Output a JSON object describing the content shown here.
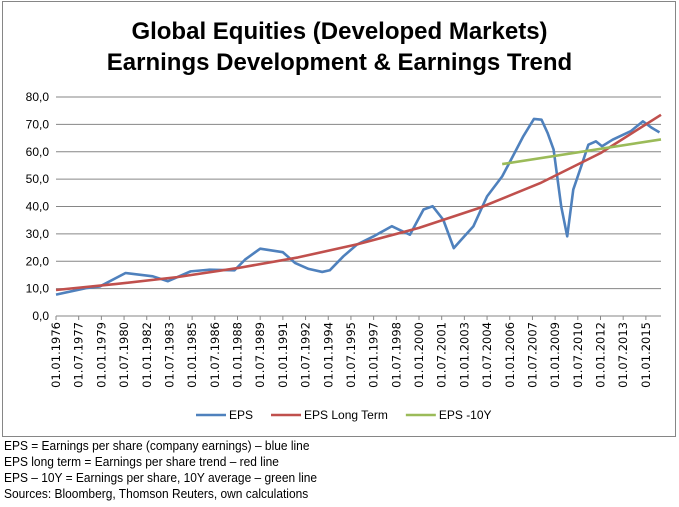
{
  "chart_data": {
    "type": "line",
    "title": "Global Equities (Developed Markets)",
    "subtitle": "Earnings Development & Earnings Trend",
    "xlabel": "",
    "ylabel": "",
    "xlim": [
      1976.0,
      2016.0
    ],
    "ylim": [
      0,
      80
    ],
    "yticks": [
      "0,0",
      "10,0",
      "20,0",
      "30,0",
      "40,0",
      "50,0",
      "60,0",
      "70,0",
      "80,0"
    ],
    "ytick_values": [
      0,
      10,
      20,
      30,
      40,
      50,
      60,
      70,
      80
    ],
    "xticks": [
      "01.01.1976",
      "01.07.1977",
      "01.01.1979",
      "01.07.1980",
      "01.01.1982",
      "01.07.1983",
      "01.01.1985",
      "01.07.1986",
      "01.01.1988",
      "01.07.1989",
      "01.01.1991",
      "01.07.1992",
      "01.01.1994",
      "01.07.1995",
      "01.01.1997",
      "01.07.1998",
      "01.01.2000",
      "01.07.2001",
      "01.01.2003",
      "01.07.2004",
      "01.01.2006",
      "01.07.2007",
      "01.01.2009",
      "01.07.2010",
      "01.01.2012",
      "01.07.2013",
      "01.01.2015"
    ],
    "grid": true,
    "legend_position": "bottom",
    "series": [
      {
        "name": "EPS",
        "color": "#4F81BD",
        "x": [
          1976.0,
          1978.0,
          1978.9,
          1980.6,
          1982.4,
          1983.4,
          1984.9,
          1986.1,
          1987.8,
          1988.5,
          1989.5,
          1991.0,
          1991.8,
          1992.7,
          1993.6,
          1994.1,
          1995.0,
          1995.9,
          1997.0,
          1998.2,
          1998.7,
          1999.4,
          2000.3,
          2000.9,
          2001.6,
          2002.3,
          2002.8,
          2003.6,
          2004.5,
          2005.5,
          2006.2,
          2006.9,
          2007.6,
          2008.1,
          2008.5,
          2008.9,
          2009.4,
          2009.8,
          2010.2,
          2010.8,
          2011.2,
          2011.7,
          2012.1,
          2012.8,
          2014.0,
          2014.8,
          2015.4,
          2015.9
        ],
        "values": [
          7.8,
          10.2,
          10.8,
          15.7,
          14.5,
          12.7,
          16.3,
          16.9,
          16.7,
          20.6,
          24.6,
          23.3,
          19.4,
          17.2,
          16.1,
          16.7,
          21.8,
          26.1,
          29.1,
          32.8,
          31.5,
          29.7,
          38.9,
          40.1,
          35.2,
          24.8,
          27.9,
          32.8,
          43.7,
          51.0,
          58.3,
          65.7,
          72.0,
          71.7,
          66.9,
          60.8,
          40.1,
          29.1,
          46.2,
          55.9,
          62.6,
          63.8,
          62.0,
          64.4,
          67.5,
          71.1,
          68.7,
          67.1
        ]
      },
      {
        "name": "EPS Long Term",
        "color": "#C0504D",
        "x": [
          1976,
          1980,
          1984,
          1988,
          1992,
          1996,
          2000,
          2004,
          2008,
          2012,
          2016
        ],
        "values": [
          9.5,
          11.7,
          14.2,
          17.5,
          21.4,
          26.3,
          32.2,
          39.5,
          48.5,
          59.5,
          73.5
        ]
      },
      {
        "name": "EPS -10Y",
        "color": "#9BBB59",
        "x": [
          2005.5,
          2016
        ],
        "values": [
          55.5,
          64.5
        ]
      }
    ]
  },
  "footnotes": [
    "EPS = Earnings per share (company earnings) – blue line",
    "EPS long term = Earnings per share trend – red line",
    "EPS – 10Y = Earnings per share, 10Y average – green line",
    "Sources: Bloomberg, Thomson Reuters, own calculations"
  ]
}
